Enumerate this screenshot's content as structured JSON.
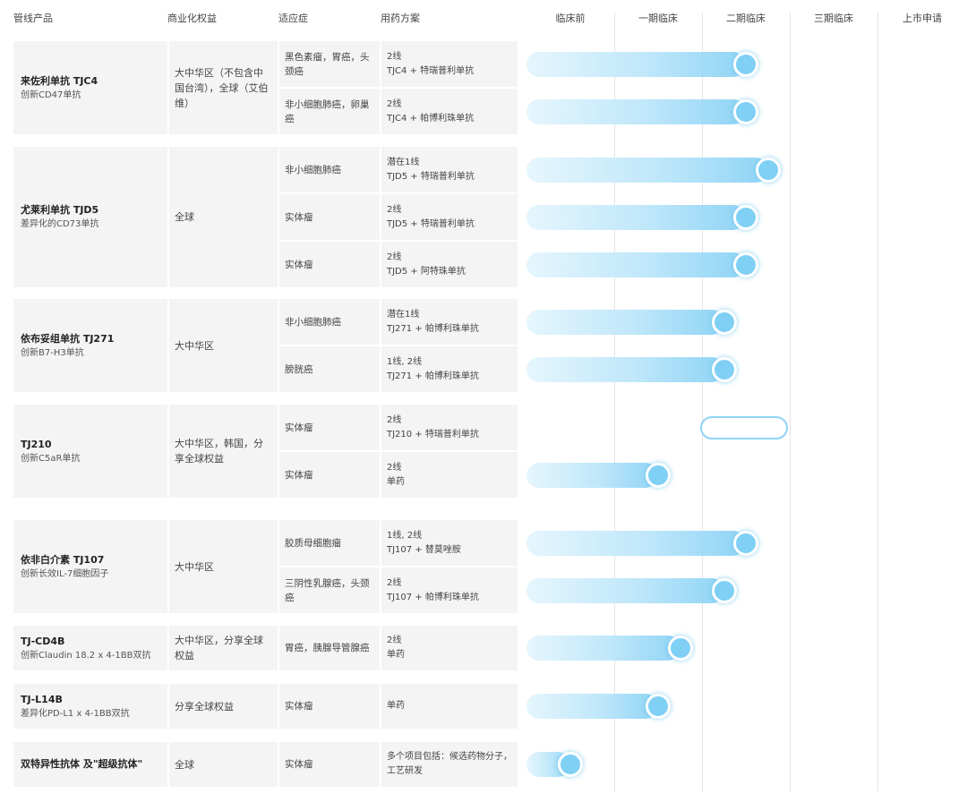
{
  "header": {
    "product": "管线产品",
    "rights": "商业化权益",
    "indication": "适应症",
    "regimen": "用药方案",
    "stages": [
      "临床前",
      "一期临床",
      "二期临床",
      "三期临床",
      "上市申请"
    ]
  },
  "colors": {
    "bar_start": "#e6f6fd",
    "bar_end": "#8fd4f5",
    "knob": "#7fd0f4",
    "cell_bg": "#f4f4f4"
  },
  "groups": [
    {
      "name": "来佐利单抗 TJC4",
      "desc": "创新CD47单抗",
      "rights": "大中华区（不包含中国台湾），全球（艾伯维）",
      "rows": [
        {
          "indication": "黑色素瘤，胃癌，头颈癌",
          "regimen_line": "2线",
          "regimen_combo": "TJC4 + 特瑞普利单抗",
          "progress": 2.5
        },
        {
          "indication": "非小细胞肺癌，卵巢癌",
          "regimen_line": "2线",
          "regimen_combo": "TJC4 + 帕博利珠单抗",
          "progress": 2.5
        }
      ]
    },
    {
      "name": "尤莱利单抗 TJD5",
      "desc": "差异化的CD73单抗",
      "rights": "全球",
      "rows": [
        {
          "indication": "非小细胞肺癌",
          "regimen_line": "潜在1线",
          "regimen_combo": "TJD5 + 特瑞普利单抗",
          "progress": 2.75
        },
        {
          "indication": "实体瘤",
          "regimen_line": "2线",
          "regimen_combo": "TJD5 + 特瑞普利单抗",
          "progress": 2.5
        },
        {
          "indication": "实体瘤",
          "regimen_line": "2线",
          "regimen_combo": "TJD5 + 阿特珠单抗",
          "progress": 2.5
        }
      ]
    },
    {
      "name": "依布妥组单抗 TJ271",
      "desc": "创新B7-H3单抗",
      "rights": "大中华区",
      "rows": [
        {
          "indication": "非小细胞肺癌",
          "regimen_line": "潜在1线",
          "regimen_combo": "TJ271 + 帕博利珠单抗",
          "progress": 2.25
        },
        {
          "indication": "膀胱癌",
          "regimen_line": "1线, 2线",
          "regimen_combo": "TJ271 + 帕博利珠单抗",
          "progress": 2.25
        }
      ]
    },
    {
      "name": "TJ210",
      "desc": "创新C5aR单抗",
      "rights": "大中华区，韩国，分享全球权益",
      "rows": [
        {
          "indication": "实体瘤",
          "regimen_line": "2线",
          "regimen_combo": "TJ210 + 特瑞普利单抗",
          "progress": null,
          "outline": true
        },
        {
          "indication": "实体瘤",
          "regimen_line": "2线",
          "regimen_combo": "单药",
          "progress": 1.5
        }
      ]
    },
    {
      "name": "依非白介素 TJ107",
      "desc": "创新长效IL-7细胞因子",
      "rights": "大中华区",
      "rows": [
        {
          "indication": "胶质母细胞瘤",
          "regimen_line": "1线, 2线",
          "regimen_combo": "TJ107 + 替莫唑胺",
          "progress": 2.5
        },
        {
          "indication": "三阴性乳腺癌，头颈癌",
          "regimen_line": "2线",
          "regimen_combo": "TJ107 + 帕博利珠单抗",
          "progress": 2.25
        }
      ]
    },
    {
      "name": "TJ-CD4B",
      "desc": "创新Claudin 18.2 x 4-1BB双抗",
      "rights": "大中华区，分享全球权益",
      "rows": [
        {
          "indication": "胃癌，胰腺导管腺癌",
          "regimen_line": "2线",
          "regimen_combo": "单药",
          "progress": 1.75
        }
      ]
    },
    {
      "name": "TJ-L14B",
      "desc": "差异化PD-L1 x 4-1BB双抗",
      "rights": "分享全球权益",
      "rows": [
        {
          "indication": "实体瘤",
          "regimen_line": "单药",
          "regimen_combo": "",
          "progress": 1.5
        }
      ]
    },
    {
      "name": "双特异性抗体 及\"超级抗体\"",
      "desc": "",
      "rights": "全球",
      "rows": [
        {
          "indication": "实体瘤",
          "regimen_line": "多个项目包括：候选药物分子，工艺研发",
          "regimen_combo": "",
          "progress": 0.5
        }
      ]
    }
  ]
}
